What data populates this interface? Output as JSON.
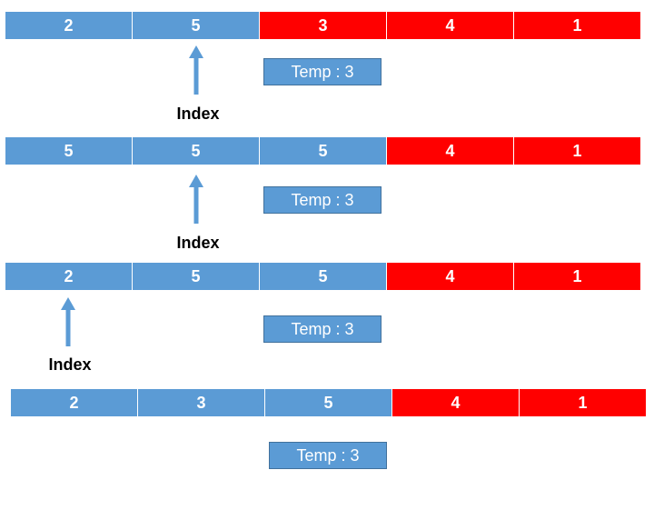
{
  "colors": {
    "sorted": "#5b9bd5",
    "unsorted": "#ff0000",
    "arrow": "#5b9bd5"
  },
  "index_label": "Index",
  "steps": [
    {
      "cells": [
        {
          "value": "2",
          "color": "blue"
        },
        {
          "value": "5",
          "color": "blue"
        },
        {
          "value": "3",
          "color": "red"
        },
        {
          "value": "4",
          "color": "red"
        },
        {
          "value": "1",
          "color": "red"
        }
      ],
      "temp": "Temp : 3"
    },
    {
      "cells": [
        {
          "value": "5",
          "color": "blue"
        },
        {
          "value": "5",
          "color": "blue"
        },
        {
          "value": "5",
          "color": "blue"
        },
        {
          "value": "4",
          "color": "red"
        },
        {
          "value": "1",
          "color": "red"
        }
      ],
      "temp": "Temp : 3"
    },
    {
      "cells": [
        {
          "value": "2",
          "color": "blue"
        },
        {
          "value": "5",
          "color": "blue"
        },
        {
          "value": "5",
          "color": "blue"
        },
        {
          "value": "4",
          "color": "red"
        },
        {
          "value": "1",
          "color": "red"
        }
      ],
      "temp": "Temp : 3"
    },
    {
      "cells": [
        {
          "value": "2",
          "color": "blue"
        },
        {
          "value": "3",
          "color": "blue"
        },
        {
          "value": "5",
          "color": "blue"
        },
        {
          "value": "4",
          "color": "red"
        },
        {
          "value": "1",
          "color": "red"
        }
      ],
      "temp": "Temp : 3"
    }
  ]
}
